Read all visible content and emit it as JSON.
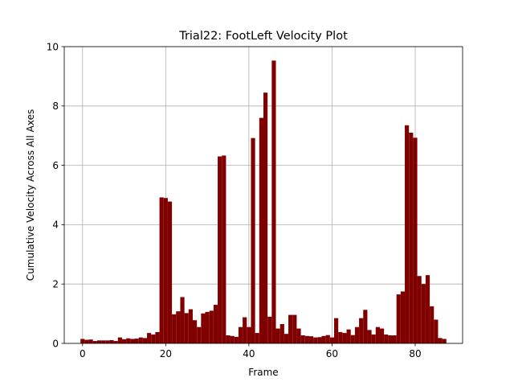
{
  "chart_data": {
    "type": "bar",
    "title": "Trial22: FootLeft Velocity Plot",
    "xlabel": "Frame",
    "ylabel": "Cumulative Velocity Across All Axes",
    "xlim": [
      -4.4,
      91.4
    ],
    "ylim": [
      0,
      10
    ],
    "xticks": [
      0,
      20,
      40,
      60,
      80
    ],
    "yticks": [
      0,
      2,
      4,
      6,
      8,
      10
    ],
    "grid": true,
    "bar_color": "#800000",
    "x": [
      0,
      1,
      2,
      3,
      4,
      5,
      6,
      7,
      8,
      9,
      10,
      11,
      12,
      13,
      14,
      15,
      16,
      17,
      18,
      19,
      20,
      21,
      22,
      23,
      24,
      25,
      26,
      27,
      28,
      29,
      30,
      31,
      32,
      33,
      34,
      35,
      36,
      37,
      38,
      39,
      40,
      41,
      42,
      43,
      44,
      45,
      46,
      47,
      48,
      49,
      50,
      51,
      52,
      53,
      54,
      55,
      56,
      57,
      58,
      59,
      60,
      61,
      62,
      63,
      64,
      65,
      66,
      67,
      68,
      69,
      70,
      71,
      72,
      73,
      74,
      75,
      76,
      77,
      78,
      79,
      80,
      81,
      82,
      83,
      84,
      85,
      86,
      87
    ],
    "values": [
      0.15,
      0.12,
      0.13,
      0.08,
      0.1,
      0.1,
      0.1,
      0.11,
      0.08,
      0.2,
      0.14,
      0.17,
      0.15,
      0.16,
      0.2,
      0.18,
      0.35,
      0.3,
      0.38,
      4.92,
      4.9,
      4.78,
      0.98,
      1.08,
      1.56,
      1.02,
      1.15,
      0.78,
      0.55,
      1.01,
      1.06,
      1.1,
      1.3,
      6.3,
      6.33,
      0.27,
      0.25,
      0.22,
      0.55,
      0.88,
      0.55,
      6.92,
      0.35,
      7.6,
      8.45,
      0.9,
      9.53,
      0.5,
      0.65,
      0.32,
      0.96,
      0.96,
      0.5,
      0.27,
      0.25,
      0.24,
      0.2,
      0.21,
      0.25,
      0.28,
      0.2,
      0.85,
      0.38,
      0.35,
      0.47,
      0.28,
      0.55,
      0.85,
      1.13,
      0.45,
      0.3,
      0.55,
      0.5,
      0.3,
      0.27,
      0.27,
      1.65,
      1.75,
      7.35,
      7.1,
      6.93,
      2.27,
      2.0,
      2.3,
      1.25,
      0.8,
      0.18,
      0.15
    ]
  }
}
